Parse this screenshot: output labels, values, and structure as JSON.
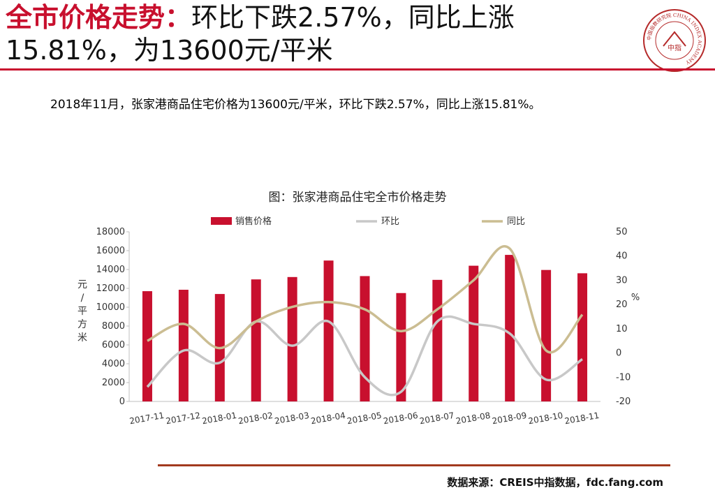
{
  "header": {
    "title_accent": "全市价格走势：",
    "title_line1_rest": "环比下跌2.57%，同比上涨",
    "title_line2": "15.81%，为13600元/平米",
    "logo_ring_text": "中国指数研究院 CHINA INDEX ACADEMY",
    "logo_center": "中指"
  },
  "summary": "2018年11月，张家港商品住宅价格为13600元/平米，环比下跌2.57%，同比上涨15.81%。",
  "chart_title": "图：张家港商品住宅全市价格走势",
  "footer": {
    "source": "数据来源：CREIS中指数据，fdc.fang.com"
  },
  "colors": {
    "accent": "#c8102e",
    "bar": "#c8102e",
    "mom_line": "#c8c8c8",
    "yoy_line": "#cbbd92",
    "footer_rule": "#a23a1e"
  },
  "chart_data": {
    "type": "bar",
    "categories": [
      "2017-11",
      "2017-12",
      "2018-01",
      "2018-02",
      "2018-03",
      "2018-04",
      "2018-05",
      "2018-06",
      "2018-07",
      "2018-08",
      "2018-09",
      "2018-10",
      "2018-11"
    ],
    "series": [
      {
        "name": "销售价格",
        "type": "bar",
        "axis": "left",
        "values": [
          11700,
          11850,
          11400,
          12950,
          13200,
          14950,
          13300,
          11500,
          12900,
          14400,
          15550,
          13950,
          13600
        ]
      },
      {
        "name": "环比",
        "type": "line",
        "axis": "right",
        "values": [
          -14,
          1,
          -4,
          13,
          3,
          13,
          -10,
          -16,
          13,
          12,
          8,
          -11,
          -2.57
        ]
      },
      {
        "name": "同比",
        "type": "line",
        "axis": "right",
        "values": [
          5,
          12,
          2,
          13,
          19,
          21,
          18,
          9,
          18,
          30,
          43,
          1,
          15.81
        ]
      }
    ],
    "ylabel_left": "元/平方米",
    "ylabel_right": "%",
    "ylim_left": [
      0,
      18000
    ],
    "yticks_left": [
      "0",
      "2000",
      "4000",
      "6000",
      "8000",
      "10000",
      "12000",
      "14000",
      "16000",
      "18000"
    ],
    "ylim_right": [
      -20,
      50
    ],
    "yticks_right": [
      "-20",
      "-10",
      "0",
      "10",
      "20",
      "30",
      "40",
      "50"
    ],
    "legend_position": "top",
    "grid": false
  }
}
